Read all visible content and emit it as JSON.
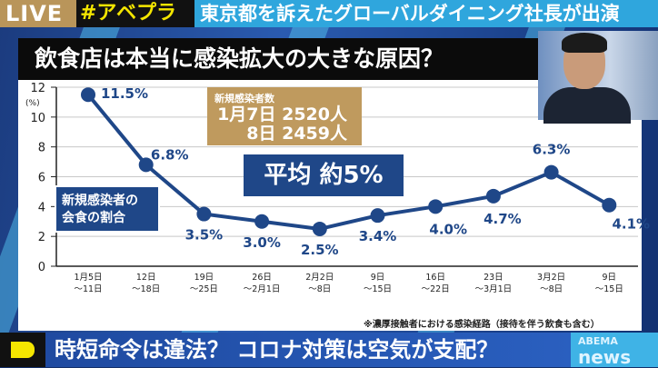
{
  "topbar": {
    "live": "LIVE",
    "hashtag": "#アベプラ",
    "headline": "東京都を訴えたグローバルダイニング社長が出演"
  },
  "title": "飲食店は本当に感染拡大の大きな原因？",
  "new_cases": {
    "label": "新規感染者数",
    "line1": "1月7日 2520人",
    "line2": "8日 2459人"
  },
  "average": "平均 約5%",
  "series_box": {
    "line1": "新規感染者の",
    "line2": "会食の割合"
  },
  "footnote": "※濃厚接触者における感染経路（接待を伴う飲食も含む）",
  "bottom": {
    "caption": "時短命令は違法？ コロナ対策は空気が支配？",
    "logo_top": "ABEMA",
    "logo_bottom": "news"
  },
  "colors": {
    "line": "#1f4788",
    "accent_gold": "#bf9a5e",
    "live_gold": "#b9955a",
    "headline_blue": "#2fa6dd",
    "hashtag_yellow": "#f4e600"
  },
  "chart_data": {
    "type": "line",
    "ylabel": "(%)",
    "ylim": [
      0,
      12
    ],
    "yticks": [
      "0",
      "2",
      "4",
      "6",
      "8",
      "10",
      "12"
    ],
    "categories": [
      [
        "1月5日",
        "～11日"
      ],
      [
        "12日",
        "～18日"
      ],
      [
        "19日",
        "～25日"
      ],
      [
        "26日",
        "～2月1日"
      ],
      [
        "2月2日",
        "～8日"
      ],
      [
        "9日",
        "～15日"
      ],
      [
        "16日",
        "～22日"
      ],
      [
        "23日",
        "～3月1日"
      ],
      [
        "3月2日",
        "～8日"
      ],
      [
        "9日",
        "～15日"
      ]
    ],
    "values": [
      11.5,
      6.8,
      3.5,
      3.0,
      2.5,
      3.4,
      4.0,
      4.7,
      6.3,
      4.1
    ],
    "data_labels": [
      "11.5%",
      "6.8%",
      "3.5%",
      "3.0%",
      "2.5%",
      "3.4%",
      "4.0%",
      "4.7%",
      "6.3%",
      "4.1%"
    ],
    "grid": true
  }
}
